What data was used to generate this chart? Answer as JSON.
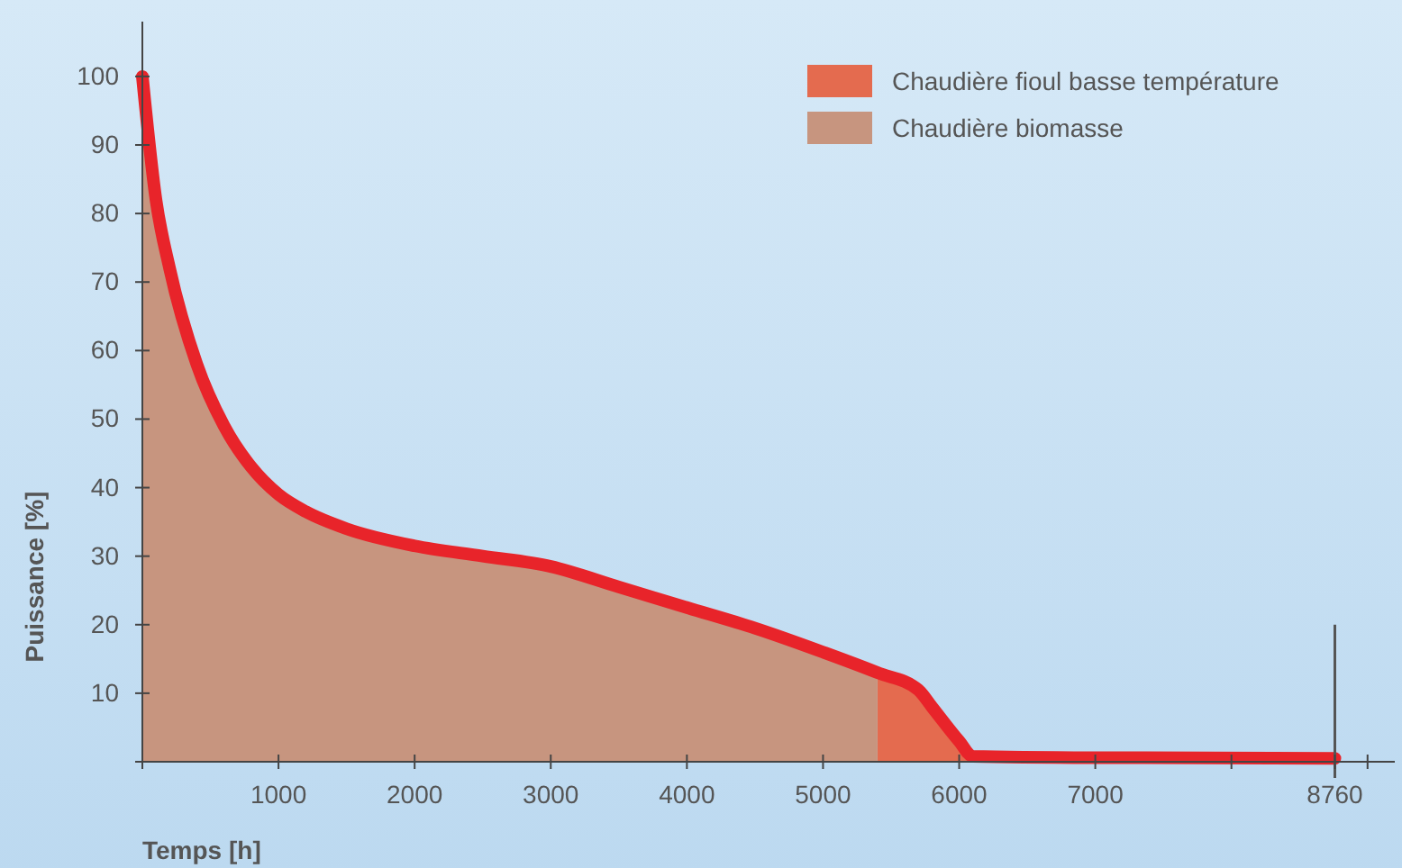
{
  "chart_data": {
    "type": "area",
    "xlabel": "Temps [h]",
    "ylabel": "Puissance [%]",
    "xlim": [
      0,
      9200
    ],
    "ylim": [
      0,
      108
    ],
    "xticks": [
      {
        "value": 0,
        "label": null
      },
      1000,
      2000,
      3000,
      4000,
      5000,
      6000,
      7000,
      {
        "value": 8000,
        "label": null
      },
      8760,
      {
        "value": 9000,
        "label": null
      }
    ],
    "yticks": [
      {
        "value": 0,
        "label": null
      },
      10,
      20,
      30,
      40,
      50,
      60,
      70,
      80,
      90,
      100
    ],
    "legend": "top right",
    "grid": false,
    "ref_lines": [
      {
        "axis": "x",
        "value": 8760,
        "color": "#555555"
      }
    ],
    "series": [
      {
        "name": "Chaudière fioul basse température",
        "color": "#e46b4f",
        "x": [
          5400,
          5700,
          5800,
          6000,
          6100
        ],
        "values": [
          13,
          10.5,
          8,
          3,
          0.8
        ]
      },
      {
        "name": "Chaudière biomasse",
        "color": "#c7957f",
        "x": [
          0,
          100,
          200,
          400,
          600,
          800,
          1000,
          1200,
          1500,
          2000,
          2500,
          3000,
          3500,
          4000,
          4500,
          5000,
          5400
        ],
        "values": [
          100,
          82,
          72,
          58,
          49,
          43,
          39,
          36.5,
          34,
          31.5,
          30,
          28.5,
          25.5,
          22.5,
          19.5,
          16,
          13
        ]
      },
      {
        "type": "line",
        "color": "#e8242a",
        "x": [
          0,
          100,
          200,
          400,
          600,
          800,
          1000,
          1200,
          1500,
          2000,
          2500,
          3000,
          3500,
          4000,
          4500,
          5000,
          5400,
          5700,
          5800,
          6000,
          6100,
          7000,
          8760
        ],
        "values": [
          100,
          82,
          72,
          58,
          49,
          43,
          39,
          36.5,
          34,
          31.5,
          30,
          28.5,
          25.5,
          22.5,
          19.5,
          16,
          13,
          10.5,
          8,
          3,
          0.8,
          0.6,
          0.5
        ]
      }
    ]
  }
}
